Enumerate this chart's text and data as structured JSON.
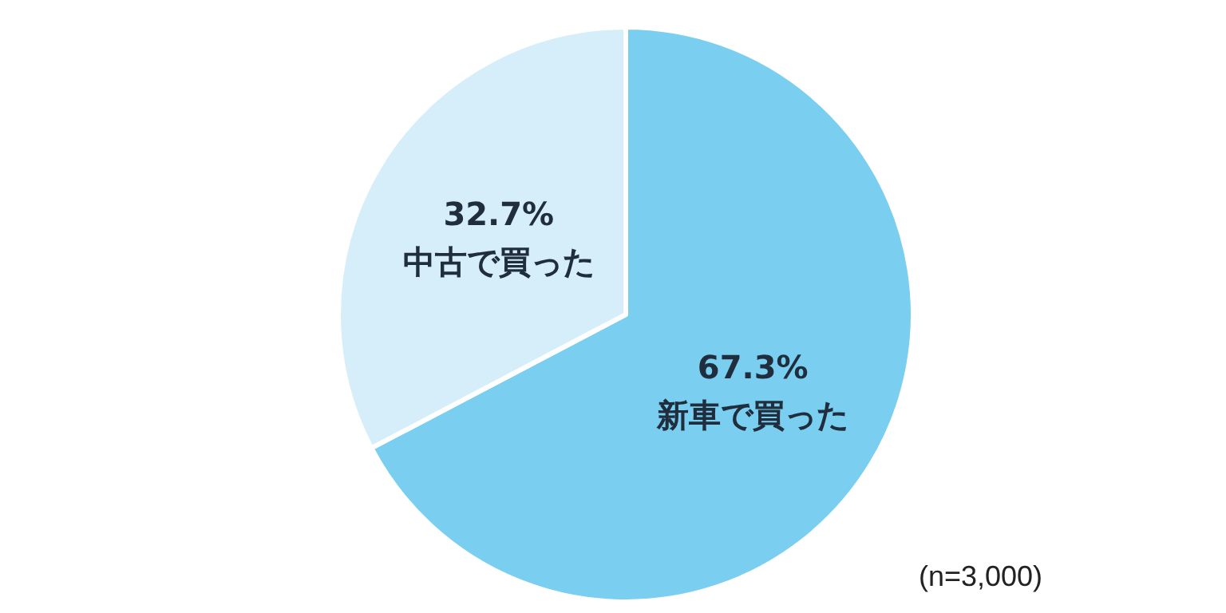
{
  "chart_data": {
    "type": "pie",
    "categories": [
      "新車で買った",
      "中古で買った"
    ],
    "values": [
      67.3,
      32.7
    ],
    "colors": [
      "#7acef0",
      "#d5eef9"
    ],
    "value_labels": [
      "67.3%",
      "32.7%"
    ],
    "annotations": [
      "(n=3,000)"
    ],
    "legend": false
  }
}
